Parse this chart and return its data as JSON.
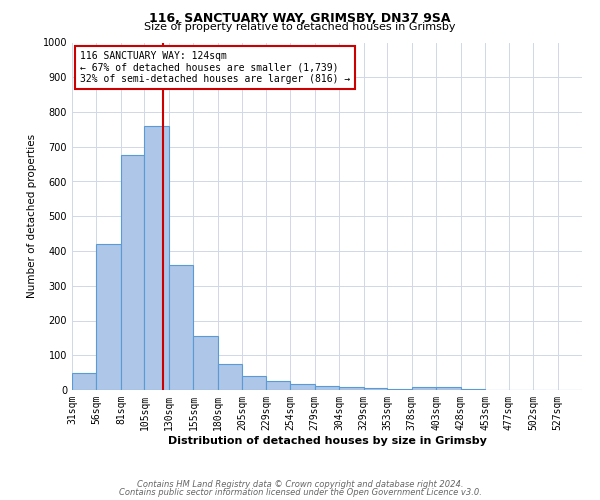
{
  "title": "116, SANCTUARY WAY, GRIMSBY, DN37 9SA",
  "subtitle": "Size of property relative to detached houses in Grimsby",
  "xlabel": "Distribution of detached houses by size in Grimsby",
  "ylabel": "Number of detached properties",
  "categories": [
    "31sqm",
    "56sqm",
    "81sqm",
    "105sqm",
    "130sqm",
    "155sqm",
    "180sqm",
    "205sqm",
    "229sqm",
    "254sqm",
    "279sqm",
    "304sqm",
    "329sqm",
    "353sqm",
    "378sqm",
    "403sqm",
    "428sqm",
    "453sqm",
    "477sqm",
    "502sqm",
    "527sqm"
  ],
  "values": [
    50,
    420,
    675,
    760,
    360,
    155,
    75,
    40,
    27,
    17,
    12,
    8,
    5,
    3,
    8,
    8,
    3,
    0,
    0,
    0,
    0
  ],
  "bar_color": "#aec6e8",
  "bar_edge_color": "#5b9bd5",
  "property_line_x": 124,
  "bin_edges": [
    31,
    56,
    81,
    105,
    130,
    155,
    180,
    205,
    229,
    254,
    279,
    304,
    329,
    353,
    378,
    403,
    428,
    453,
    477,
    502,
    527,
    552
  ],
  "ylim": [
    0,
    1000
  ],
  "yticks": [
    0,
    100,
    200,
    300,
    400,
    500,
    600,
    700,
    800,
    900,
    1000
  ],
  "red_line_color": "#cc0000",
  "annotation_text": "116 SANCTUARY WAY: 124sqm\n← 67% of detached houses are smaller (1,739)\n32% of semi-detached houses are larger (816) →",
  "annotation_box_color": "#cc0000",
  "footnote_line1": "Contains HM Land Registry data © Crown copyright and database right 2024.",
  "footnote_line2": "Contains public sector information licensed under the Open Government Licence v3.0.",
  "background_color": "#ffffff",
  "grid_color": "#d0d8e8",
  "title_fontsize": 9,
  "subtitle_fontsize": 8,
  "xlabel_fontsize": 8,
  "ylabel_fontsize": 7.5,
  "tick_fontsize": 7,
  "annotation_fontsize": 7,
  "footnote_fontsize": 6
}
